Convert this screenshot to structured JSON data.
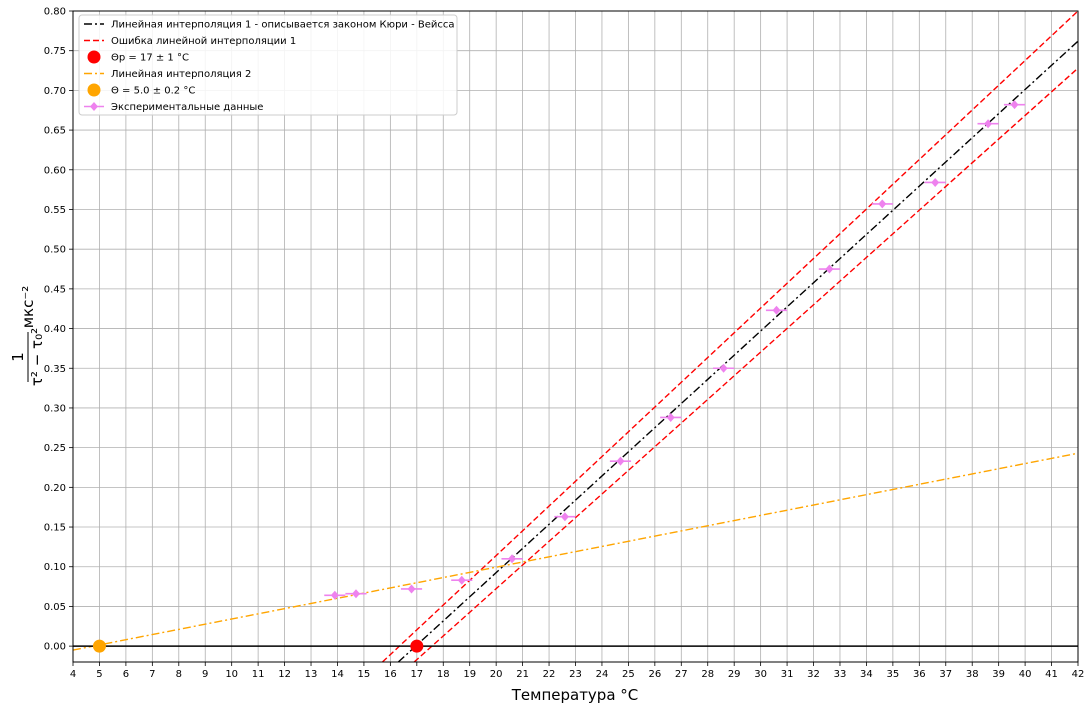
{
  "chart_data": {
    "type": "scatter",
    "xlabel": "Температура °C",
    "ylabel_fraction_numerator": "1",
    "ylabel_fraction_denominator": "τ² − τ₀²",
    "ylabel_unit": "мкс⁻²",
    "xlim": [
      4,
      42
    ],
    "ylim": [
      -0.02,
      0.8
    ],
    "x_ticks": [
      4,
      5,
      6,
      7,
      8,
      9,
      10,
      11,
      12,
      13,
      14,
      15,
      16,
      17,
      18,
      19,
      20,
      21,
      22,
      23,
      24,
      25,
      26,
      27,
      28,
      29,
      30,
      31,
      32,
      33,
      34,
      35,
      36,
      37,
      38,
      39,
      40,
      41,
      42
    ],
    "y_ticks": [
      0.0,
      0.05,
      0.1,
      0.15,
      0.2,
      0.25,
      0.3,
      0.35,
      0.4,
      0.45,
      0.5,
      0.55,
      0.6,
      0.65,
      0.7,
      0.75,
      0.8
    ],
    "grid": true,
    "legend_position": "top-left",
    "legend": [
      {
        "label": "Линейная интерполяция 1 - описывается законом Кюри - Вейсса",
        "kind": "line",
        "style": "dashdot",
        "color": "#000000"
      },
      {
        "label": "Ошибка линейной интерполяции 1",
        "kind": "line",
        "style": "dashed",
        "color": "#ff0000"
      },
      {
        "label": "Θp = 17 ± 1 °C",
        "kind": "dot",
        "color": "#ff0000"
      },
      {
        "label": "Линейная интерполяция 2",
        "kind": "line",
        "style": "dashdot",
        "color": "#ffa500"
      },
      {
        "label": "Θ = 5.0 ± 0.2 °C",
        "kind": "dot",
        "color": "#ffa500"
      },
      {
        "label": "Экспериментальные данные",
        "kind": "marker",
        "color": "#ee82ee"
      }
    ],
    "series": [
      {
        "name": "Линейная интерполяция 1 - описывается законом Кюри - Вейсса",
        "type": "line",
        "color": "#000000",
        "style": "dashdot",
        "x": [
          16.3,
          42
        ],
        "y": [
          -0.02,
          0.762
        ]
      },
      {
        "name": "Ошибка линейной интерполяции 1",
        "type": "line",
        "color": "#ff0000",
        "style": "dashed",
        "x": [
          15.7,
          42
        ],
        "y": [
          -0.02,
          0.8
        ]
      },
      {
        "name": "Ошибка линейной интерполяции 1",
        "type": "line",
        "color": "#ff0000",
        "style": "dashed",
        "x": [
          16.9,
          42
        ],
        "y": [
          -0.02,
          0.728
        ]
      },
      {
        "name": "Линейная интерполяция 2",
        "type": "line",
        "color": "#ffa500",
        "style": "dashdot",
        "x": [
          4,
          42
        ],
        "y": [
          -0.005,
          0.243
        ]
      },
      {
        "name": "Θp = 17 ± 1 °C",
        "type": "point",
        "color": "#ff0000",
        "x": [
          17.0
        ],
        "y": [
          0.0
        ]
      },
      {
        "name": "Θ = 5.0 ± 0.2 °C",
        "type": "point",
        "color": "#ffa500",
        "x": [
          5.0
        ],
        "y": [
          0.0
        ]
      },
      {
        "name": "Экспериментальные данные",
        "type": "scatter",
        "color": "#ee82ee",
        "x": [
          13.9,
          14.7,
          16.8,
          18.7,
          20.6,
          22.6,
          24.7,
          26.6,
          28.6,
          30.6,
          32.6,
          34.6,
          36.6,
          38.6,
          39.6
        ],
        "y": [
          0.064,
          0.066,
          0.072,
          0.083,
          0.11,
          0.163,
          0.233,
          0.288,
          0.35,
          0.423,
          0.475,
          0.557,
          0.584,
          0.658,
          0.682
        ],
        "xerr": [
          0.4,
          0.4,
          0.4,
          0.4,
          0.4,
          0.4,
          0.4,
          0.4,
          0.4,
          0.4,
          0.4,
          0.4,
          0.4,
          0.4,
          0.4
        ]
      },
      {
        "name": "",
        "type": "hline",
        "color": "#000000",
        "y": 0.0
      }
    ]
  }
}
